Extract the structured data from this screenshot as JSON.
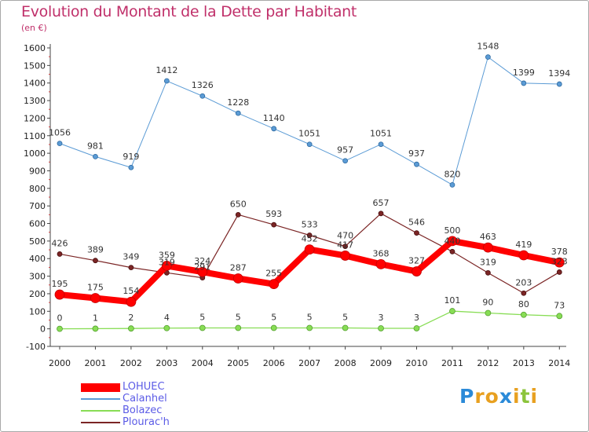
{
  "title": "Evolution du Montant de la Dette par Habitant",
  "unit": "(en €)",
  "logo": {
    "letters": [
      "P",
      "r",
      "o",
      "x",
      "i",
      "t",
      "i"
    ],
    "colors": [
      "#2a8ad8",
      "#e8a020",
      "#e8a020",
      "#2a8ad8",
      "#e8a020",
      "#8cc43c",
      "#e8a020"
    ]
  },
  "chart_data": {
    "type": "line",
    "title": "Evolution du Montant de la Dette par Habitant",
    "ylabel": "(en €)",
    "x": [
      "2000",
      "2001",
      "2002",
      "2003",
      "2004",
      "2005",
      "2006",
      "2007",
      "2008",
      "2009",
      "2010",
      "2011",
      "2012",
      "2013",
      "2014"
    ],
    "ylim": [
      -100,
      1600
    ],
    "yticks": [
      -100,
      0,
      100,
      200,
      300,
      400,
      500,
      600,
      700,
      800,
      900,
      1000,
      1100,
      1200,
      1300,
      1400,
      1500,
      1600
    ],
    "grid": false,
    "legend_position": "bottom-left",
    "series": [
      {
        "name": "LOHUEC",
        "color": "#ff0000",
        "values": [
          195,
          175,
          154,
          359,
          324,
          287,
          255,
          452,
          417,
          368,
          327,
          500,
          463,
          419,
          378
        ]
      },
      {
        "name": "Calanhel",
        "color": "#5b9bd5",
        "values": [
          1056,
          981,
          919,
          1412,
          1326,
          1228,
          1140,
          1051,
          957,
          1051,
          937,
          820,
          1548,
          1399,
          1394
        ]
      },
      {
        "name": "Bolazec",
        "color": "#88dd55",
        "values": [
          0,
          1,
          2,
          4,
          5,
          5,
          5,
          5,
          5,
          3,
          3,
          101,
          90,
          80,
          73
        ]
      },
      {
        "name": "Plourac'h",
        "color": "#7b2525",
        "values": [
          426,
          389,
          349,
          319,
          291,
          650,
          593,
          533,
          470,
          657,
          546,
          440,
          319,
          203,
          323
        ]
      }
    ],
    "labels": [
      {
        "series": 0,
        "values": [
          "195",
          "175",
          "154",
          "359",
          "324",
          "287",
          "255",
          "452",
          "417",
          "368",
          "327",
          "500",
          "463",
          "419",
          "378"
        ]
      },
      {
        "series": 1,
        "values": [
          "1056",
          "981",
          "919",
          "1412",
          "1326",
          "1228",
          "1140",
          "1051",
          "957",
          "1051",
          "937",
          "820",
          "1548",
          "1399",
          "1394"
        ]
      },
      {
        "series": 2,
        "values": [
          "0",
          "1",
          "2",
          "4",
          "5",
          "5",
          "5",
          "5",
          "5",
          "3",
          "3",
          "101",
          "90",
          "80",
          "73"
        ]
      },
      {
        "series": 3,
        "values": [
          "426",
          "389",
          "349",
          "319",
          "291",
          "650",
          "593",
          "533",
          "470",
          "657",
          "546",
          "440",
          "319",
          "203",
          "323"
        ]
      }
    ]
  }
}
